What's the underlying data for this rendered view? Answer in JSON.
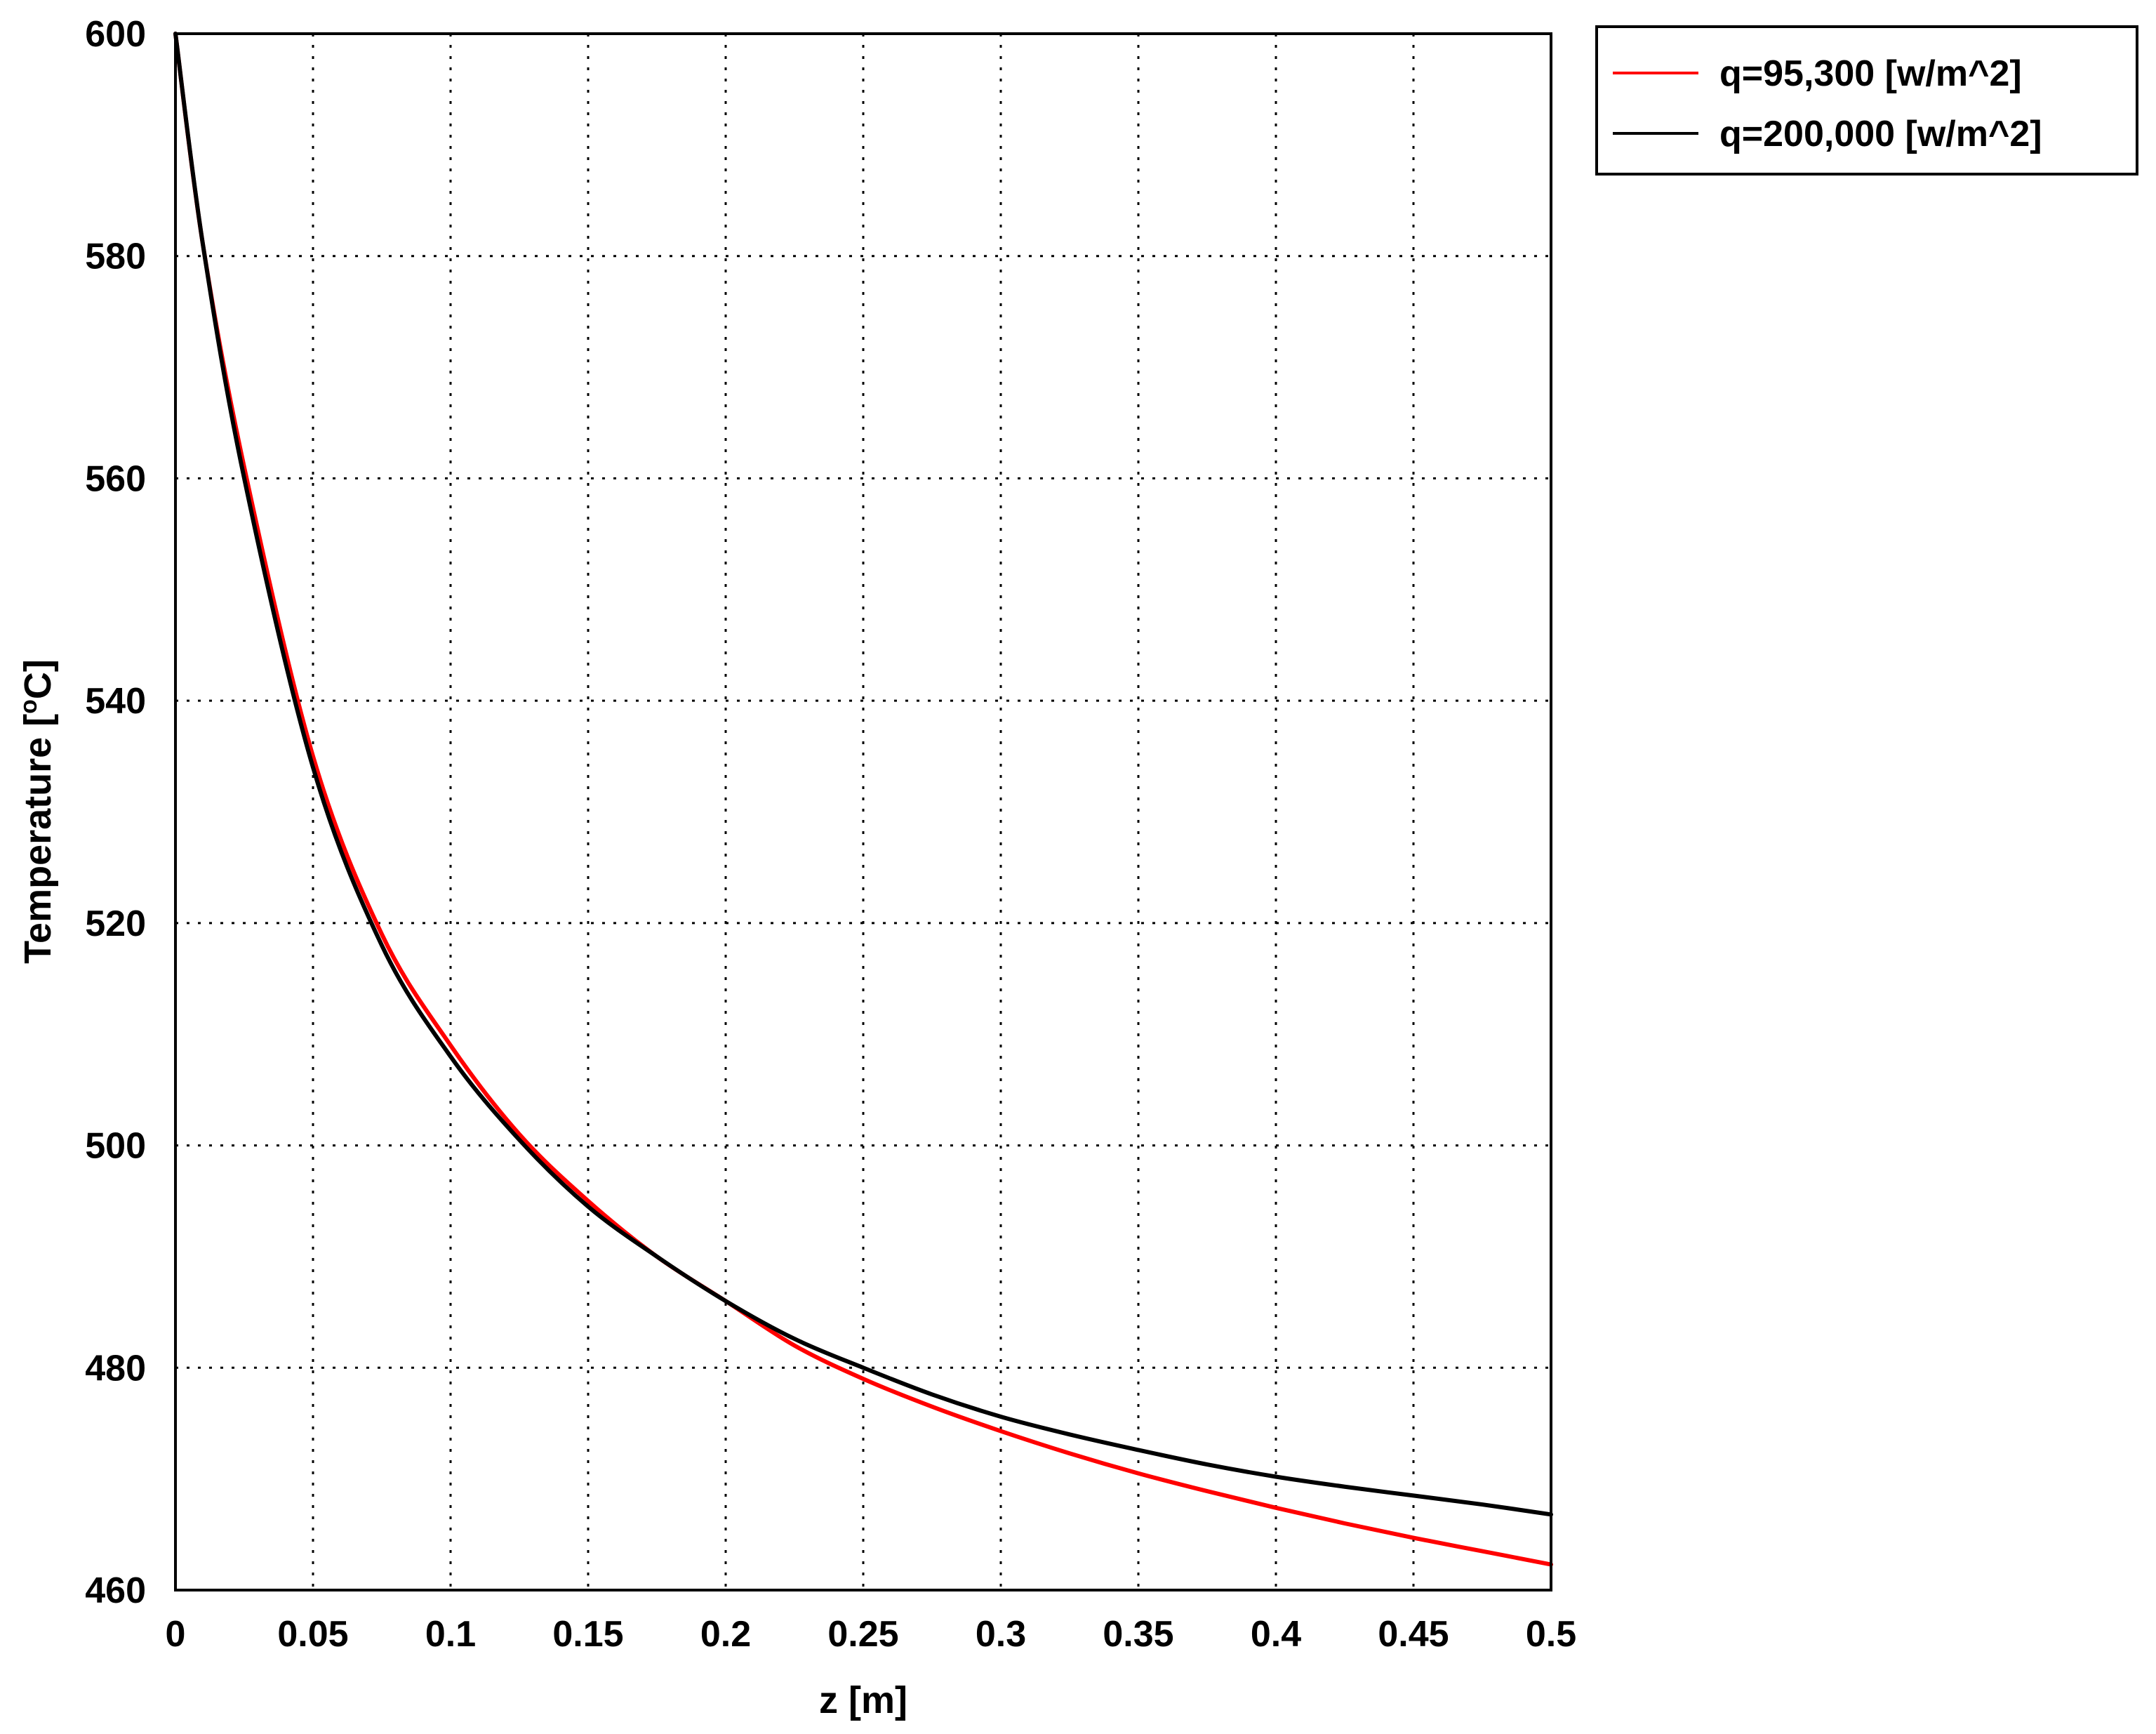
{
  "chart_data": {
    "type": "line",
    "title": "",
    "xlabel": "z [m]",
    "ylabel_text": "Temperature [",
    "ylabel_degree": "o",
    "ylabel_unit": "C]",
    "xlim": [
      0,
      0.5
    ],
    "ylim": [
      460,
      600
    ],
    "xticks": [
      0,
      0.05,
      0.1,
      0.15,
      0.2,
      0.25,
      0.3,
      0.35,
      0.4,
      0.45,
      0.5
    ],
    "xtick_labels": [
      "0",
      "0.05",
      "0.1",
      "0.15",
      "0.2",
      "0.25",
      "0.3",
      "0.35",
      "0.4",
      "0.45",
      "0.5"
    ],
    "yticks": [
      460,
      480,
      500,
      520,
      540,
      560,
      580,
      600
    ],
    "ytick_labels": [
      "460",
      "480",
      "500",
      "520",
      "540",
      "560",
      "580",
      "600"
    ],
    "grid": true,
    "legend_position": "outside-top-right",
    "series": [
      {
        "name": "q=95,300 [w/m^2]",
        "color": "#ff0000",
        "x": [
          0,
          0.01,
          0.025,
          0.05,
          0.075,
          0.1,
          0.125,
          0.15,
          0.175,
          0.2,
          0.225,
          0.25,
          0.275,
          0.3,
          0.325,
          0.35,
          0.375,
          0.4,
          0.425,
          0.45,
          0.475,
          0.5
        ],
        "y": [
          600,
          581,
          561,
          535,
          519,
          509,
          501,
          495,
          490,
          486,
          482,
          479,
          476.5,
          474.3,
          472.3,
          470.5,
          468.9,
          467.4,
          466,
          464.7,
          463.5,
          462.3
        ]
      },
      {
        "name": "q=200,000 [w/m^2]",
        "color": "#000000",
        "x": [
          0,
          0.01,
          0.025,
          0.05,
          0.075,
          0.1,
          0.125,
          0.15,
          0.175,
          0.2,
          0.225,
          0.25,
          0.275,
          0.3,
          0.325,
          0.35,
          0.375,
          0.4,
          0.425,
          0.45,
          0.475,
          0.5
        ],
        "y": [
          600,
          581,
          560,
          534,
          518,
          508,
          500.5,
          494.5,
          490,
          486,
          482.6,
          480,
          477.6,
          475.6,
          474,
          472.6,
          471.3,
          470.2,
          469.3,
          468.5,
          467.7,
          466.8
        ]
      }
    ]
  }
}
